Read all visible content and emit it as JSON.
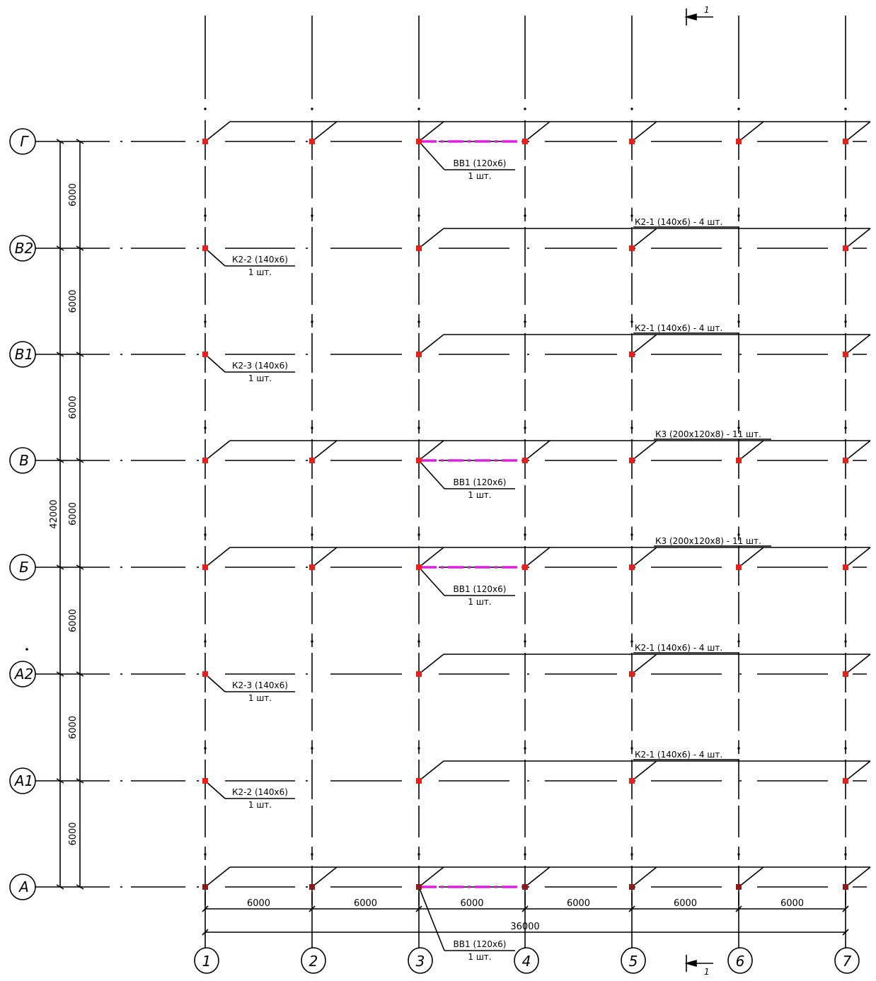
{
  "row_axes": [
    {
      "label": "Г"
    },
    {
      "label": "В2"
    },
    {
      "label": "В1"
    },
    {
      "label": "В"
    },
    {
      "label": "Б"
    },
    {
      "label": "А2"
    },
    {
      "label": "А1"
    },
    {
      "label": "А"
    }
  ],
  "column_axes": [
    {
      "label": "1"
    },
    {
      "label": "2"
    },
    {
      "label": "3"
    },
    {
      "label": "4"
    },
    {
      "label": "5"
    },
    {
      "label": "6"
    },
    {
      "label": "7"
    }
  ],
  "vertical_dimensions": {
    "spacing_labels": [
      "6000",
      "6000",
      "6000",
      "6000",
      "6000",
      "6000",
      "6000"
    ],
    "total": "42000"
  },
  "horizontal_dimensions": {
    "spacing_labels": [
      "6000",
      "6000",
      "6000",
      "6000",
      "6000",
      "6000"
    ],
    "total": "36000"
  },
  "section_mark": {
    "label": "1"
  },
  "row_notes": [
    {
      "row": "В2",
      "text": "К2-1 (140x6) - 4 шт."
    },
    {
      "row": "В1",
      "text": "К2-1 (140x6) - 4 шт."
    },
    {
      "row": "В",
      "text": "К3 (200x120x8) - 11 шт."
    },
    {
      "row": "Б",
      "text": "К3 (200x120x8) - 11 шт."
    },
    {
      "row": "А2",
      "text": "К2-1 (140x6) - 4 шт."
    },
    {
      "row": "А1",
      "text": "К2-1 (140x6) - 4 шт."
    }
  ],
  "leader_labels": [
    {
      "row": "Г",
      "top": "ВВ1  (120x6)",
      "bottom": "1 шт."
    },
    {
      "row": "В2",
      "top": "К2-2 (140x6)",
      "bottom": "1 шт."
    },
    {
      "row": "В1",
      "top": "К2-3 (140x6)",
      "bottom": "1 шт."
    },
    {
      "row": "В",
      "top": "ВВ1  (120x6)",
      "bottom": "1 шт."
    },
    {
      "row": "Б",
      "top": "ВВ1  (120x6)",
      "bottom": "1 шт."
    },
    {
      "row": "А2",
      "top": "К2-3 (140x6)",
      "bottom": "1 шт."
    },
    {
      "row": "А1",
      "top": "К2-2 (140x6)",
      "bottom": "1 шт."
    },
    {
      "row": "А",
      "top": "ВВ1 (120x6)",
      "bottom": "1 шт."
    }
  ],
  "colors": {
    "line": "#000000",
    "node": "#e8201a",
    "node_dark": "#8b1a1a",
    "brace": "#e020e0"
  }
}
